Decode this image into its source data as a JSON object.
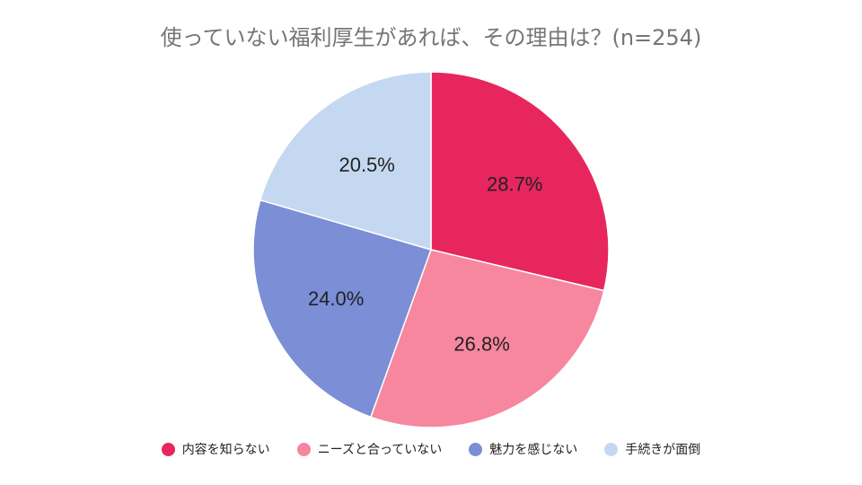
{
  "chart_data": {
    "type": "pie",
    "title": "使っていない福利厚生があれば、その理由は？(n=254)",
    "categories": [
      "内容を知らない",
      "ニーズと合っていない",
      "魅力を感じない",
      "手続きが面倒"
    ],
    "values": [
      28.7,
      26.8,
      24.0,
      20.5
    ],
    "data_labels": [
      "28.7%",
      "26.8%",
      "24.0%",
      "20.5%"
    ],
    "colors": [
      "#e8265e",
      "#f7869f",
      "#7b8ed6",
      "#c5d8f1"
    ],
    "legend_position": "bottom"
  }
}
